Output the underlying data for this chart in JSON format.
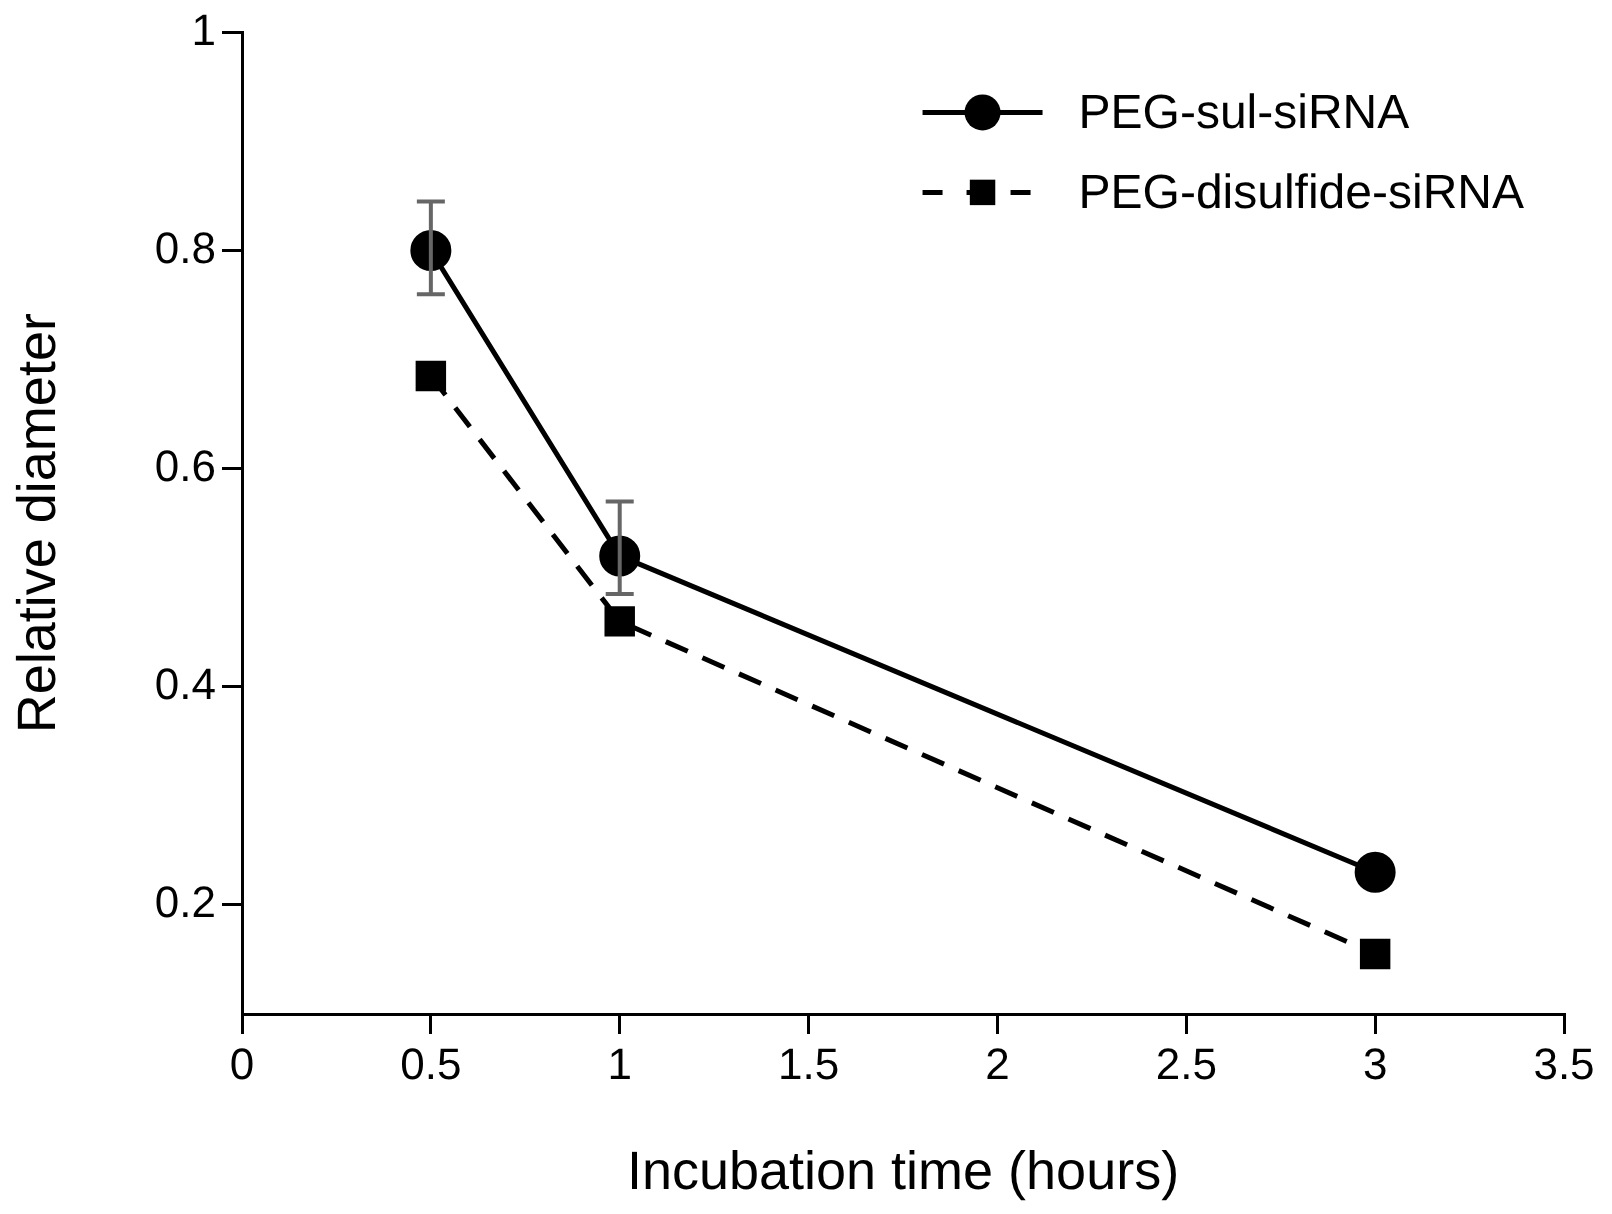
{
  "chart_data": {
    "type": "line",
    "xlabel": "Incubation time (hours)",
    "ylabel": "Relative diameter",
    "xlim": [
      0,
      3.5
    ],
    "xticks": [
      0,
      0.5,
      1,
      1.5,
      2,
      2.5,
      3,
      3.5
    ],
    "ylim": [
      0.1,
      1
    ],
    "yticks": [
      0.2,
      0.4,
      0.6,
      0.8,
      1
    ],
    "grid": false,
    "legend": "top right",
    "x": [
      0.5,
      1,
      3
    ],
    "series": [
      {
        "name": "PEG-sul-siRNA",
        "color": "#000000",
        "marker": "circle",
        "line_style": "solid",
        "values": [
          0.8,
          0.52,
          0.23
        ],
        "errors": [
          [
            0.76,
            0.845
          ],
          [
            0.485,
            0.57
          ],
          null
        ]
      },
      {
        "name": "PEG-disulfide-siRNA",
        "color": "#000000",
        "marker": "square",
        "line_style": "dashed",
        "values": [
          0.685,
          0.46,
          0.155
        ]
      }
    ]
  }
}
